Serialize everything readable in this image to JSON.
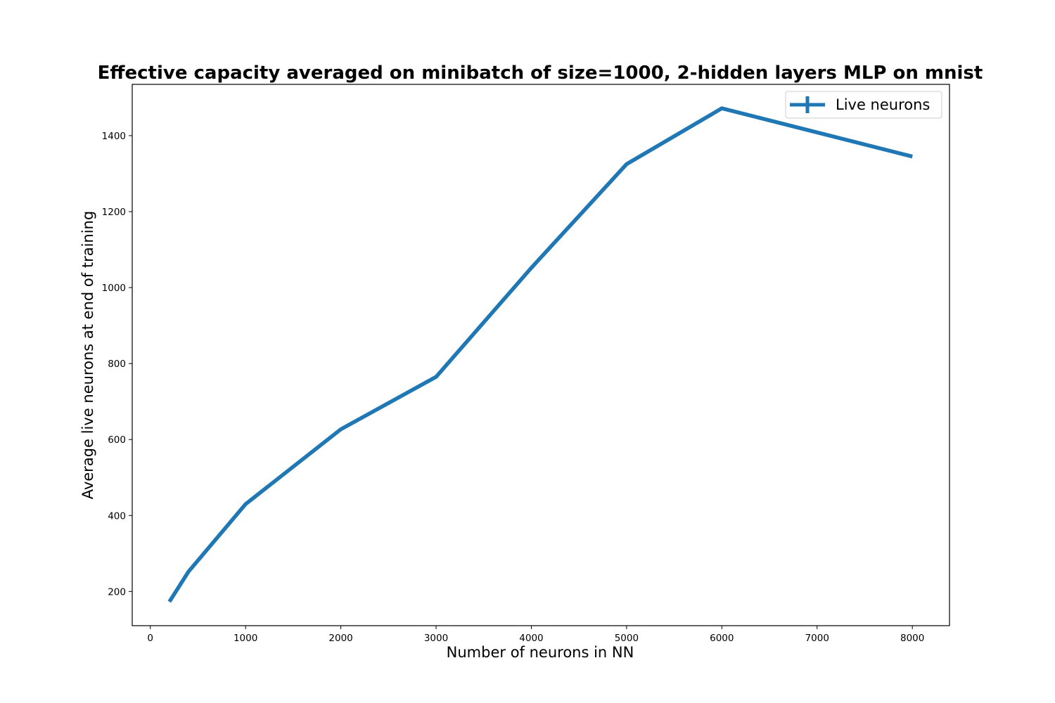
{
  "chart_data": {
    "type": "line",
    "title": "Effective capacity averaged on minibatch of size=1000, 2-hidden layers MLP on mnist",
    "xlabel": "Number of neurons in NN",
    "ylabel": "Average live neurons at end of training",
    "xlim": [
      -190,
      8390
    ],
    "ylim": [
      110,
      1535
    ],
    "xticks": [
      0,
      1000,
      2000,
      3000,
      4000,
      5000,
      6000,
      7000,
      8000
    ],
    "yticks": [
      200,
      400,
      600,
      800,
      1000,
      1200,
      1400
    ],
    "grid": false,
    "legend_position": "top-right",
    "series": [
      {
        "name": "Live neurons",
        "color": "#1f77b4",
        "x": [
          200,
          400,
          1000,
          2000,
          3000,
          4000,
          5000,
          6000,
          8000
        ],
        "y": [
          173,
          252,
          430,
          627,
          765,
          1052,
          1325,
          1472,
          1345
        ]
      }
    ]
  }
}
